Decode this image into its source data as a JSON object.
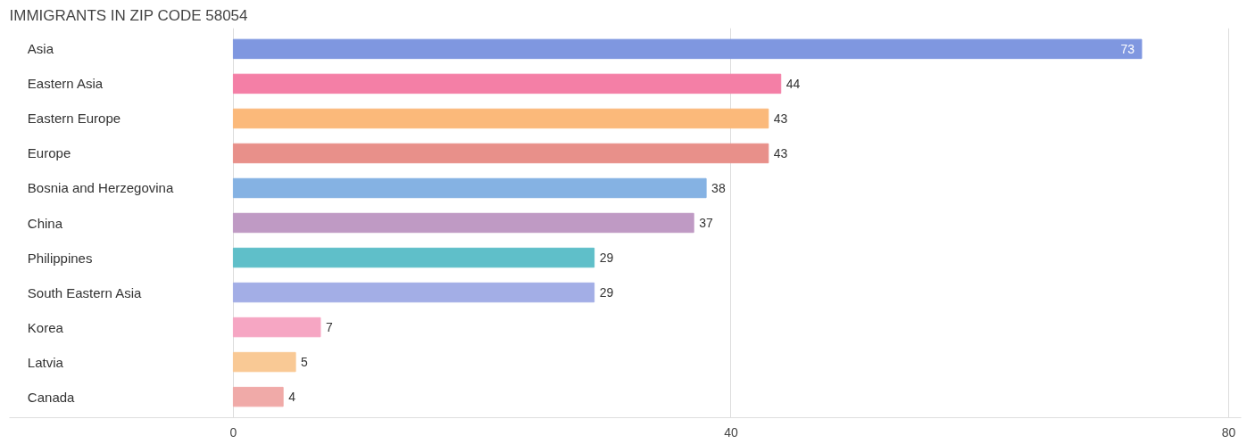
{
  "chart_data": {
    "type": "bar",
    "orientation": "horizontal",
    "title": "IMMIGRANTS IN ZIP CODE 58054",
    "categories": [
      "Asia",
      "Eastern Asia",
      "Eastern Europe",
      "Europe",
      "Bosnia and Herzegovina",
      "China",
      "Philippines",
      "South Eastern Asia",
      "Korea",
      "Latvia",
      "Canada"
    ],
    "values": [
      73,
      44,
      43,
      43,
      38,
      37,
      29,
      29,
      7,
      5,
      4
    ],
    "colors": [
      "#7f97e0",
      "#f47fa6",
      "#fbb97a",
      "#e8908a",
      "#85b2e3",
      "#bf9ac4",
      "#5fbfc9",
      "#a3aee6",
      "#f6a6c3",
      "#f9c995",
      "#f0aaa8"
    ],
    "xlim": [
      -18,
      81
    ],
    "xticks": [
      0,
      40,
      80
    ],
    "grid": "x",
    "data_labels": true
  }
}
